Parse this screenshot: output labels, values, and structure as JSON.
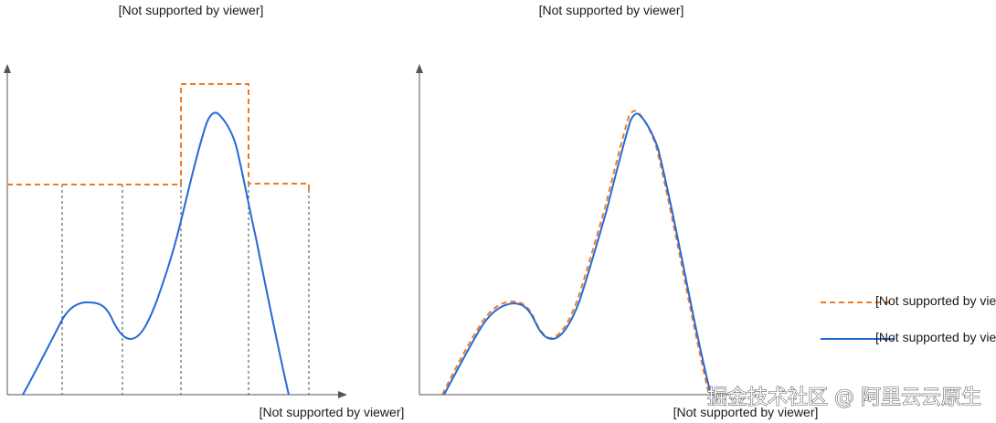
{
  "left_panel": {
    "title": "[Not supported by viewer]",
    "x_axis_label": "[Not supported by viewer]"
  },
  "right_panel": {
    "title": "[Not supported by viewer]",
    "x_axis_label": "[Not supported by viewer]"
  },
  "legend": {
    "dashed_entry": "[Not supported by viewer]",
    "solid_entry": "[Not supported by viewer]"
  },
  "watermark": "掘金技术社区 @ 阿里云云原生",
  "colors": {
    "orange_dashed": "#f07a23",
    "blue_solid": "#2469d6",
    "axis": "#555555",
    "guide": "#444444"
  }
}
